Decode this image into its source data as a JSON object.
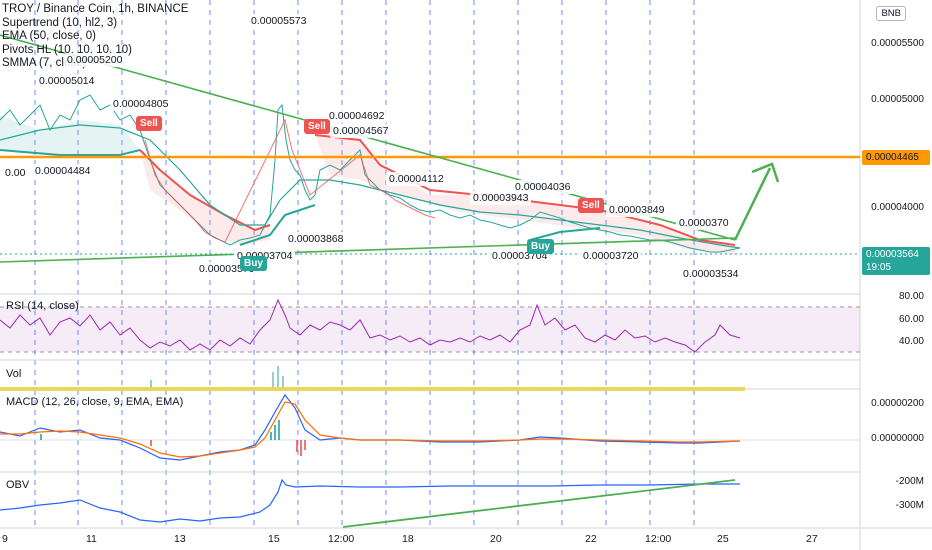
{
  "legend": [
    "TROY / Binance Coin, 1h, BINANCE",
    "Supertrend (10, hl2, 3)",
    "EMA (50, close, 0)",
    "Pivots HL (10, 10, 10, 10)",
    "SMMA (7, close)"
  ],
  "currency_badge": "BNB",
  "price_labels": [
    {
      "text": "0.00005573"
    },
    {
      "text": "0.00005200"
    },
    {
      "text": "0.00005014"
    },
    {
      "text": "0.00004805"
    },
    {
      "text": "0.00004692"
    },
    {
      "text": "0.00004567"
    },
    {
      "text": "0.00004484"
    },
    {
      "text": "0.00"
    },
    {
      "text": "0.00004112"
    },
    {
      "text": "0.00004036"
    },
    {
      "text": "0.00003943"
    },
    {
      "text": "0.00003868"
    },
    {
      "text": "0.00003704"
    },
    {
      "text": "0.00003579"
    },
    {
      "text": "0.00003704"
    },
    {
      "text": "0.00003720"
    },
    {
      "text": "0.00003534"
    },
    {
      "text": "0.00003849"
    },
    {
      "text": "0.0000370"
    }
  ],
  "signals": [
    {
      "text": "Sell",
      "kind": "sell"
    },
    {
      "text": "Sell",
      "kind": "sell"
    },
    {
      "text": "Sell",
      "kind": "sell"
    },
    {
      "text": "Buy",
      "kind": "buy"
    },
    {
      "text": "Buy",
      "kind": "buy"
    }
  ],
  "price_axis": [
    "0.00005500",
    "0.00005000",
    "0.00004000"
  ],
  "price_tags": {
    "level": "0.00004465",
    "current_price": "0.00003564",
    "countdown": "19:05"
  },
  "rsi": {
    "label": "RSI (14, close)",
    "axis": [
      "80.00",
      "60.00",
      "40.00"
    ]
  },
  "vol": {
    "label": "Vol"
  },
  "macd": {
    "label": "MACD (12, 26, close, 9, EMA, EMA)",
    "axis": [
      "0.00000200",
      "0.00000000"
    ]
  },
  "obv": {
    "label": "OBV",
    "axis": [
      "-200M",
      "-300M"
    ]
  },
  "time_axis": [
    "9",
    "11",
    "13",
    "15",
    "12:00",
    "18",
    "20",
    "22",
    "12:00",
    "25",
    "27"
  ],
  "colors": {
    "up": "#26a69a",
    "down": "#ef5350",
    "level": "#ff9800",
    "trend": "#4caf50",
    "rsi": "#9c27b0",
    "macd": "#2962ff",
    "signal": "#ff6d00",
    "obv": "#2962ff",
    "grid": "#2962ff"
  }
}
